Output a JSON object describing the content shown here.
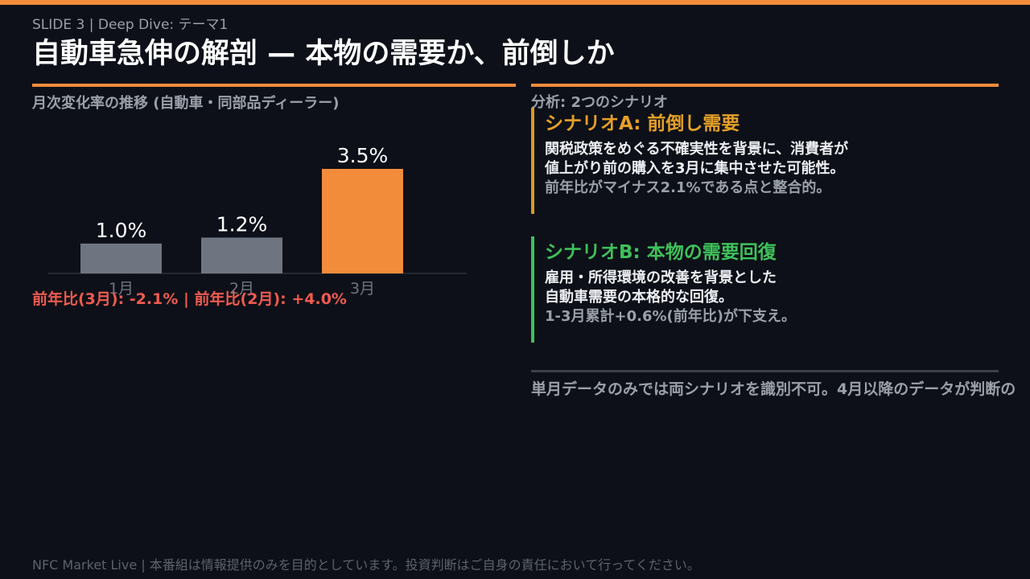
{
  "header": {
    "slide_label": "SLIDE 3 | Deep Dive: テーマ1",
    "title": "自動車急伸の解剖 — 本物の需要か、前倒しか"
  },
  "colors": {
    "accent": "#f28c3b",
    "background": "#0d1018",
    "bar_default": "#6f7580",
    "bar_highlight": "#f28c3b",
    "negative": "#f05a4f",
    "scenario_a": "#e6a027",
    "scenario_b": "#3ec15a"
  },
  "chart_data": {
    "type": "bar",
    "title": "月次変化率の推移 (自動車・同部品ディーラー)",
    "categories": [
      "1月",
      "2月",
      "3月"
    ],
    "values": [
      1.0,
      1.2,
      3.5
    ],
    "value_labels": [
      "1.0%",
      "1.2%",
      "3.5%"
    ],
    "highlight_index": 2,
    "ylim": [
      0,
      3.5
    ],
    "grid": false
  },
  "yoy_note": "前年比(3月): -2.1% | 前年比(2月): +4.0%",
  "analysis": {
    "label": "分析: 2つのシナリオ",
    "scenario_a": {
      "heading": "シナリオA: 前倒し需要",
      "line1": "関税政策をめぐる不確実性を背景に、消費者が",
      "line2": "値上がり前の購入を3月に集中させた可能性。",
      "line3": "前年比がマイナス2.1%である点と整合的。"
    },
    "scenario_b": {
      "heading": "シナリオB: 本物の需要回復",
      "line1": "雇用・所得環境の改善を背景とした",
      "line2": "自動車需要の本格的な回復。",
      "line3": "1-3月累計+0.6%(前年比)が下支え。"
    },
    "conclusion": "単月データのみでは両シナリオを識別不可。4月以降のデータが判断の"
  },
  "footer": "NFC Market Live | 本番組は情報提供のみを目的としています。投資判断はご自身の責任において行ってください。"
}
